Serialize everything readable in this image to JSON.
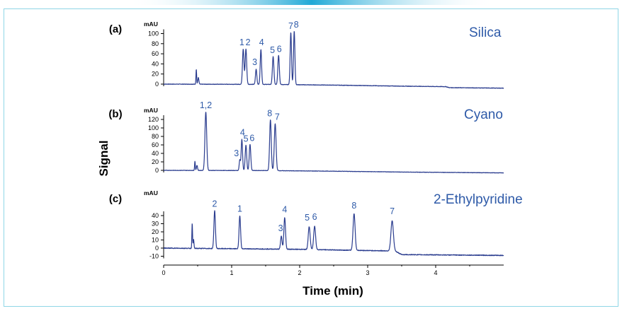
{
  "chart_data": {
    "type": "line",
    "xlabel": "Time (min)",
    "ylabel": "Signal",
    "xlim": [
      0,
      5
    ],
    "x_ticks": [
      0,
      1,
      2,
      3,
      4
    ],
    "x_tick_labels": [
      "0",
      "1",
      "2",
      "3",
      "4"
    ],
    "panels": [
      {
        "id": "a",
        "tag": "(a)",
        "label": "Silica",
        "unit": "mAU",
        "ylim": [
          -12,
          115
        ],
        "y_ticks": [
          0,
          20,
          40,
          60,
          80,
          100
        ],
        "y_tick_labels": [
          "0",
          "20",
          "40",
          "60",
          "80",
          "100"
        ],
        "baseline": [
          [
            0,
            0
          ],
          [
            1.5,
            -0.5
          ],
          [
            2.5,
            -2
          ],
          [
            3.5,
            -4
          ],
          [
            4.15,
            -5
          ],
          [
            4.2,
            -7
          ],
          [
            5,
            -8
          ]
        ],
        "peaks": [
          {
            "t": 0.48,
            "h": 30,
            "w": 0.005
          },
          {
            "t": 0.51,
            "h": 13,
            "w": 0.008
          },
          {
            "t": 1.17,
            "h": 70,
            "w": 0.011
          },
          {
            "t": 1.21,
            "h": 70,
            "w": 0.011
          },
          {
            "t": 1.36,
            "h": 30,
            "w": 0.01
          },
          {
            "t": 1.43,
            "h": 69,
            "w": 0.01
          },
          {
            "t": 1.61,
            "h": 55,
            "w": 0.011
          },
          {
            "t": 1.69,
            "h": 58,
            "w": 0.011
          },
          {
            "t": 1.87,
            "h": 103,
            "w": 0.01
          },
          {
            "t": 1.92,
            "h": 106,
            "w": 0.01
          }
        ],
        "peak_labels": [
          {
            "text": "1",
            "t": 1.15,
            "y": 74
          },
          {
            "text": "2",
            "t": 1.24,
            "y": 74
          },
          {
            "text": "3",
            "t": 1.34,
            "y": 35
          },
          {
            "text": "4",
            "t": 1.44,
            "y": 74
          },
          {
            "text": "5",
            "t": 1.6,
            "y": 59
          },
          {
            "text": "6",
            "t": 1.7,
            "y": 61
          },
          {
            "text": "7",
            "t": 1.87,
            "y": 106
          },
          {
            "text": "8",
            "t": 1.95,
            "y": 109
          }
        ]
      },
      {
        "id": "b",
        "tag": "(b)",
        "label": "Cyano",
        "unit": "mAU",
        "ylim": [
          -12,
          132
        ],
        "y_ticks": [
          0,
          20,
          40,
          60,
          80,
          100,
          120
        ],
        "y_tick_labels": [
          "0",
          "20",
          "40",
          "60",
          "80",
          "100",
          "120"
        ],
        "baseline": [
          [
            0,
            0
          ],
          [
            1.5,
            -0.5
          ],
          [
            2.5,
            -2
          ],
          [
            3.5,
            -4
          ],
          [
            5,
            -6
          ]
        ],
        "peaks": [
          {
            "t": 0.46,
            "h": 22,
            "w": 0.005
          },
          {
            "t": 0.49,
            "h": 12,
            "w": 0.008
          },
          {
            "t": 0.62,
            "h": 138,
            "w": 0.013
          },
          {
            "t": 1.12,
            "h": 25,
            "w": 0.009
          },
          {
            "t": 1.15,
            "h": 74,
            "w": 0.01
          },
          {
            "t": 1.21,
            "h": 60,
            "w": 0.011
          },
          {
            "t": 1.27,
            "h": 62,
            "w": 0.011
          },
          {
            "t": 1.57,
            "h": 120,
            "w": 0.012
          },
          {
            "t": 1.64,
            "h": 111,
            "w": 0.013
          }
        ],
        "peak_labels": [
          {
            "text": "1,2",
            "t": 0.62,
            "y": 143
          },
          {
            "text": "3",
            "t": 1.07,
            "y": 30
          },
          {
            "text": "4",
            "t": 1.16,
            "y": 79
          },
          {
            "text": "5",
            "t": 1.21,
            "y": 64
          },
          {
            "text": "6",
            "t": 1.3,
            "y": 66
          },
          {
            "text": "8",
            "t": 1.56,
            "y": 124
          },
          {
            "text": "7",
            "t": 1.67,
            "y": 116
          }
        ]
      },
      {
        "id": "c",
        "tag": "(c)",
        "label": "2-Ethylpyridine",
        "unit": "mAU",
        "ylim": [
          -12,
          49
        ],
        "y_ticks": [
          -10,
          0,
          10,
          20,
          30,
          40
        ],
        "y_tick_labels": [
          "-10",
          "0",
          "10",
          "20",
          "30",
          "40"
        ],
        "baseline": [
          [
            0,
            0
          ],
          [
            2,
            -1.5
          ],
          [
            3,
            -3
          ],
          [
            3.4,
            -3.5
          ],
          [
            3.5,
            -8
          ],
          [
            5,
            -9
          ]
        ],
        "peaks": [
          {
            "t": 0.42,
            "h": 31,
            "w": 0.005
          },
          {
            "t": 0.44,
            "h": 11,
            "w": 0.006
          },
          {
            "t": 0.75,
            "h": 47,
            "w": 0.011
          },
          {
            "t": 1.12,
            "h": 41,
            "w": 0.011
          },
          {
            "t": 1.73,
            "h": 16,
            "w": 0.011
          },
          {
            "t": 1.78,
            "h": 39,
            "w": 0.012
          },
          {
            "t": 2.14,
            "h": 28,
            "w": 0.014
          },
          {
            "t": 2.22,
            "h": 29,
            "w": 0.014
          },
          {
            "t": 2.8,
            "h": 45,
            "w": 0.015
          },
          {
            "t": 3.36,
            "h": 37,
            "w": 0.018
          }
        ],
        "peak_labels": [
          {
            "text": "2",
            "t": 0.75,
            "y": 49
          },
          {
            "text": "1",
            "t": 1.12,
            "y": 43
          },
          {
            "text": "3",
            "t": 1.72,
            "y": 19
          },
          {
            "text": "4",
            "t": 1.78,
            "y": 42
          },
          {
            "text": "5",
            "t": 2.11,
            "y": 32
          },
          {
            "text": "6",
            "t": 2.22,
            "y": 33
          },
          {
            "text": "8",
            "t": 2.8,
            "y": 47
          },
          {
            "text": "7",
            "t": 3.36,
            "y": 40
          }
        ]
      }
    ]
  }
}
